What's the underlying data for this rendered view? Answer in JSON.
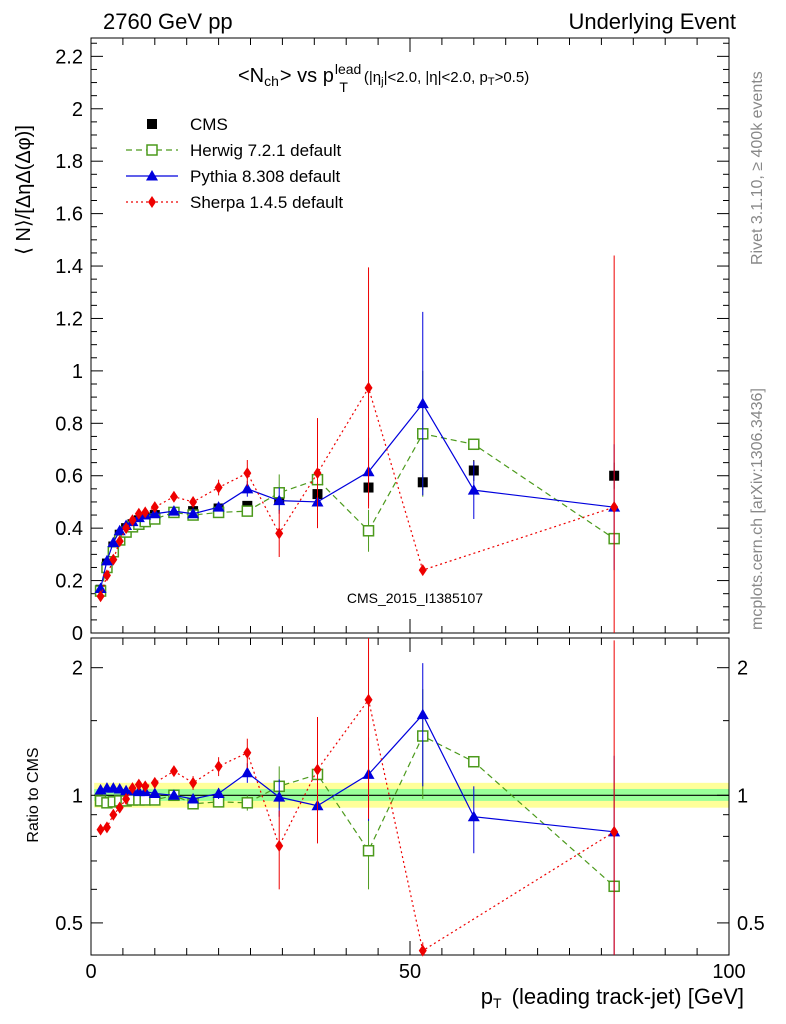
{
  "header": {
    "left": "2760 GeV pp",
    "right": "Underlying Event"
  },
  "side_labels": {
    "rivet": "Rivet 3.1.10, ≥ 400k events",
    "mcplots": "mcplots.cern.ch [arXiv:1306.3436]"
  },
  "watermark": "CMS_2015_I1385107",
  "title": {
    "main": "<N",
    "main_sub": "ch",
    "mid": "> vs p",
    "p_sup": "lead",
    "p_sub": "T",
    "cuts": "(|η",
    "cuts_sub": "j",
    "cuts2": "|<2.0, |η|<2.0, p",
    "cuts2_sub": "T",
    "cuts3": ">0.5)"
  },
  "colors": {
    "cms": "#000000",
    "herwig": "#4c9a1c",
    "pythia": "#0000dd",
    "sherpa": "#ee0000",
    "band_outer": "#ffff99",
    "band_inner": "#99ff99"
  },
  "chart_data": [
    {
      "type": "scatter",
      "panel": "main",
      "xlabel": "",
      "ylabel": "⟨ N⟩/[ΔηΔ(Δφ)]",
      "xlim": [
        0,
        100
      ],
      "ylim": [
        0,
        2.27
      ],
      "yticks": [
        "0",
        "0.2",
        "0.4",
        "0.6",
        "0.8",
        "1",
        "1.2",
        "1.4",
        "1.6",
        "1.8",
        "2",
        "2.2"
      ],
      "legend_position": "top-left",
      "series": [
        {
          "name": "CMS",
          "style": "markers",
          "x": [
            1.5,
            2.5,
            3.5,
            4.5,
            5.5,
            6.5,
            7.5,
            8.5,
            10,
            13,
            16,
            20,
            24.5,
            29.5,
            35.5,
            43.5,
            52,
            60,
            82
          ],
          "y": [
            0.165,
            0.265,
            0.33,
            0.375,
            0.4,
            0.415,
            0.43,
            0.44,
            0.45,
            0.46,
            0.465,
            0.475,
            0.485,
            0.51,
            0.53,
            0.555,
            0.575,
            0.62,
            0.6
          ],
          "err": [
            0.01,
            0.01,
            0.01,
            0.01,
            0.01,
            0.01,
            0.01,
            0.01,
            0.01,
            0.01,
            0.01,
            0.01,
            0.015,
            0.015,
            0.02,
            0.025,
            0.03,
            0.04,
            0.05
          ]
        },
        {
          "name": "Herwig 7.2.1 default",
          "style": "dashed",
          "x": [
            1.5,
            2.5,
            3.5,
            4.5,
            5.5,
            6.5,
            7.5,
            8.5,
            10,
            13,
            16,
            20,
            24.5,
            29.5,
            35.5,
            43.5,
            52,
            60,
            82
          ],
          "y": [
            0.16,
            0.25,
            0.31,
            0.355,
            0.385,
            0.405,
            0.415,
            0.425,
            0.435,
            0.46,
            0.45,
            0.46,
            0.465,
            0.535,
            0.585,
            0.39,
            0.76,
            0.72,
            0.36
          ],
          "err": [
            0.005,
            0.005,
            0.005,
            0.005,
            0.005,
            0.005,
            0.005,
            0.005,
            0.01,
            0.01,
            0.01,
            0.01,
            0.02,
            0.07,
            0.06,
            0.08,
            0.24,
            0.01,
            0.01
          ]
        },
        {
          "name": "Pythia 8.308 default",
          "style": "solid",
          "x": [
            1.5,
            2.5,
            3.5,
            4.5,
            5.5,
            6.5,
            7.5,
            8.5,
            10,
            13,
            16,
            20,
            24.5,
            29.5,
            35.5,
            43.5,
            52,
            60,
            82
          ],
          "y": [
            0.17,
            0.275,
            0.345,
            0.39,
            0.41,
            0.425,
            0.44,
            0.45,
            0.455,
            0.465,
            0.455,
            0.48,
            0.55,
            0.505,
            0.5,
            0.615,
            0.875,
            0.545,
            0.48
          ],
          "err": [
            0.005,
            0.005,
            0.005,
            0.005,
            0.005,
            0.005,
            0.005,
            0.005,
            0.01,
            0.01,
            0.01,
            0.015,
            0.03,
            0.05,
            0.07,
            0.13,
            0.35,
            0.11,
            0.24
          ]
        },
        {
          "name": "Sherpa 1.4.5 default",
          "style": "dotted",
          "x": [
            1.5,
            2.5,
            3.5,
            4.5,
            5.5,
            6.5,
            7.5,
            8.5,
            10,
            13,
            16,
            20,
            24.5,
            29.5,
            35.5,
            43.5,
            52,
            82
          ],
          "y": [
            0.14,
            0.22,
            0.28,
            0.35,
            0.4,
            0.43,
            0.455,
            0.46,
            0.48,
            0.52,
            0.5,
            0.555,
            0.61,
            0.38,
            0.61,
            0.935,
            0.24,
            0.48
          ],
          "err": [
            0.005,
            0.005,
            0.005,
            0.005,
            0.005,
            0.005,
            0.005,
            0.01,
            0.01,
            0.015,
            0.02,
            0.03,
            0.05,
            0.09,
            0.21,
            0.46,
            0.01,
            0.96
          ]
        }
      ]
    },
    {
      "type": "scatter",
      "panel": "ratio",
      "xlabel": "p_T (leading track-jet) [GeV]",
      "ylabel": "Ratio to CMS",
      "xlim": [
        0,
        100
      ],
      "ylim": [
        0.42,
        2.35
      ],
      "yscale": "log",
      "xticks": [
        "0",
        "50",
        "100"
      ],
      "yticks": [
        "0.5",
        "1",
        "2"
      ],
      "band_outer": [
        0.935,
        1.07
      ],
      "band_inner": [
        0.97,
        1.035
      ],
      "series": [
        {
          "name": "Herwig 7.2.1 default",
          "style": "dashed",
          "x": [
            1.5,
            2.5,
            3.5,
            4.5,
            5.5,
            6.5,
            7.5,
            8.5,
            10,
            13,
            16,
            20,
            24.5,
            29.5,
            35.5,
            43.5,
            52,
            60,
            82
          ],
          "y": [
            0.97,
            0.96,
            0.965,
            0.97,
            0.97,
            0.975,
            0.975,
            0.975,
            0.975,
            1.0,
            0.955,
            0.965,
            0.96,
            1.05,
            1.12,
            0.74,
            1.38,
            1.2,
            0.61
          ],
          "err": [
            0.01,
            0.01,
            0.01,
            0.01,
            0.01,
            0.01,
            0.01,
            0.01,
            0.01,
            0.01,
            0.01,
            0.02,
            0.04,
            0.12,
            0.1,
            0.14,
            0.4,
            0.02,
            0.02
          ]
        },
        {
          "name": "Pythia 8.308 default",
          "style": "solid",
          "x": [
            1.5,
            2.5,
            3.5,
            4.5,
            5.5,
            6.5,
            7.5,
            8.5,
            10,
            13,
            16,
            20,
            24.5,
            29.5,
            35.5,
            43.5,
            52,
            60,
            82
          ],
          "y": [
            1.03,
            1.04,
            1.04,
            1.035,
            1.025,
            1.025,
            1.02,
            1.02,
            1.01,
            1.0,
            0.98,
            1.01,
            1.13,
            0.99,
            0.945,
            1.12,
            1.55,
            0.89,
            0.82
          ],
          "err": [
            0.01,
            0.01,
            0.01,
            0.01,
            0.01,
            0.01,
            0.01,
            0.01,
            0.02,
            0.02,
            0.02,
            0.03,
            0.06,
            0.1,
            0.14,
            0.25,
            0.5,
            0.16,
            0.42
          ]
        },
        {
          "name": "Sherpa 1.4.5 default",
          "style": "dotted",
          "x": [
            1.5,
            2.5,
            3.5,
            4.5,
            5.5,
            6.5,
            7.5,
            8.5,
            10,
            13,
            16,
            20,
            24.5,
            29.5,
            35.5,
            43.5,
            52,
            82
          ],
          "y": [
            0.83,
            0.84,
            0.9,
            0.935,
            0.98,
            1.04,
            1.06,
            1.05,
            1.07,
            1.14,
            1.07,
            1.17,
            1.26,
            0.76,
            1.15,
            1.68,
            0.43,
            0.82
          ],
          "err": [
            0.01,
            0.01,
            0.01,
            0.01,
            0.01,
            0.01,
            0.01,
            0.02,
            0.02,
            0.03,
            0.04,
            0.06,
            0.1,
            0.16,
            0.38,
            0.8,
            0.02,
            1.5
          ]
        }
      ]
    }
  ]
}
